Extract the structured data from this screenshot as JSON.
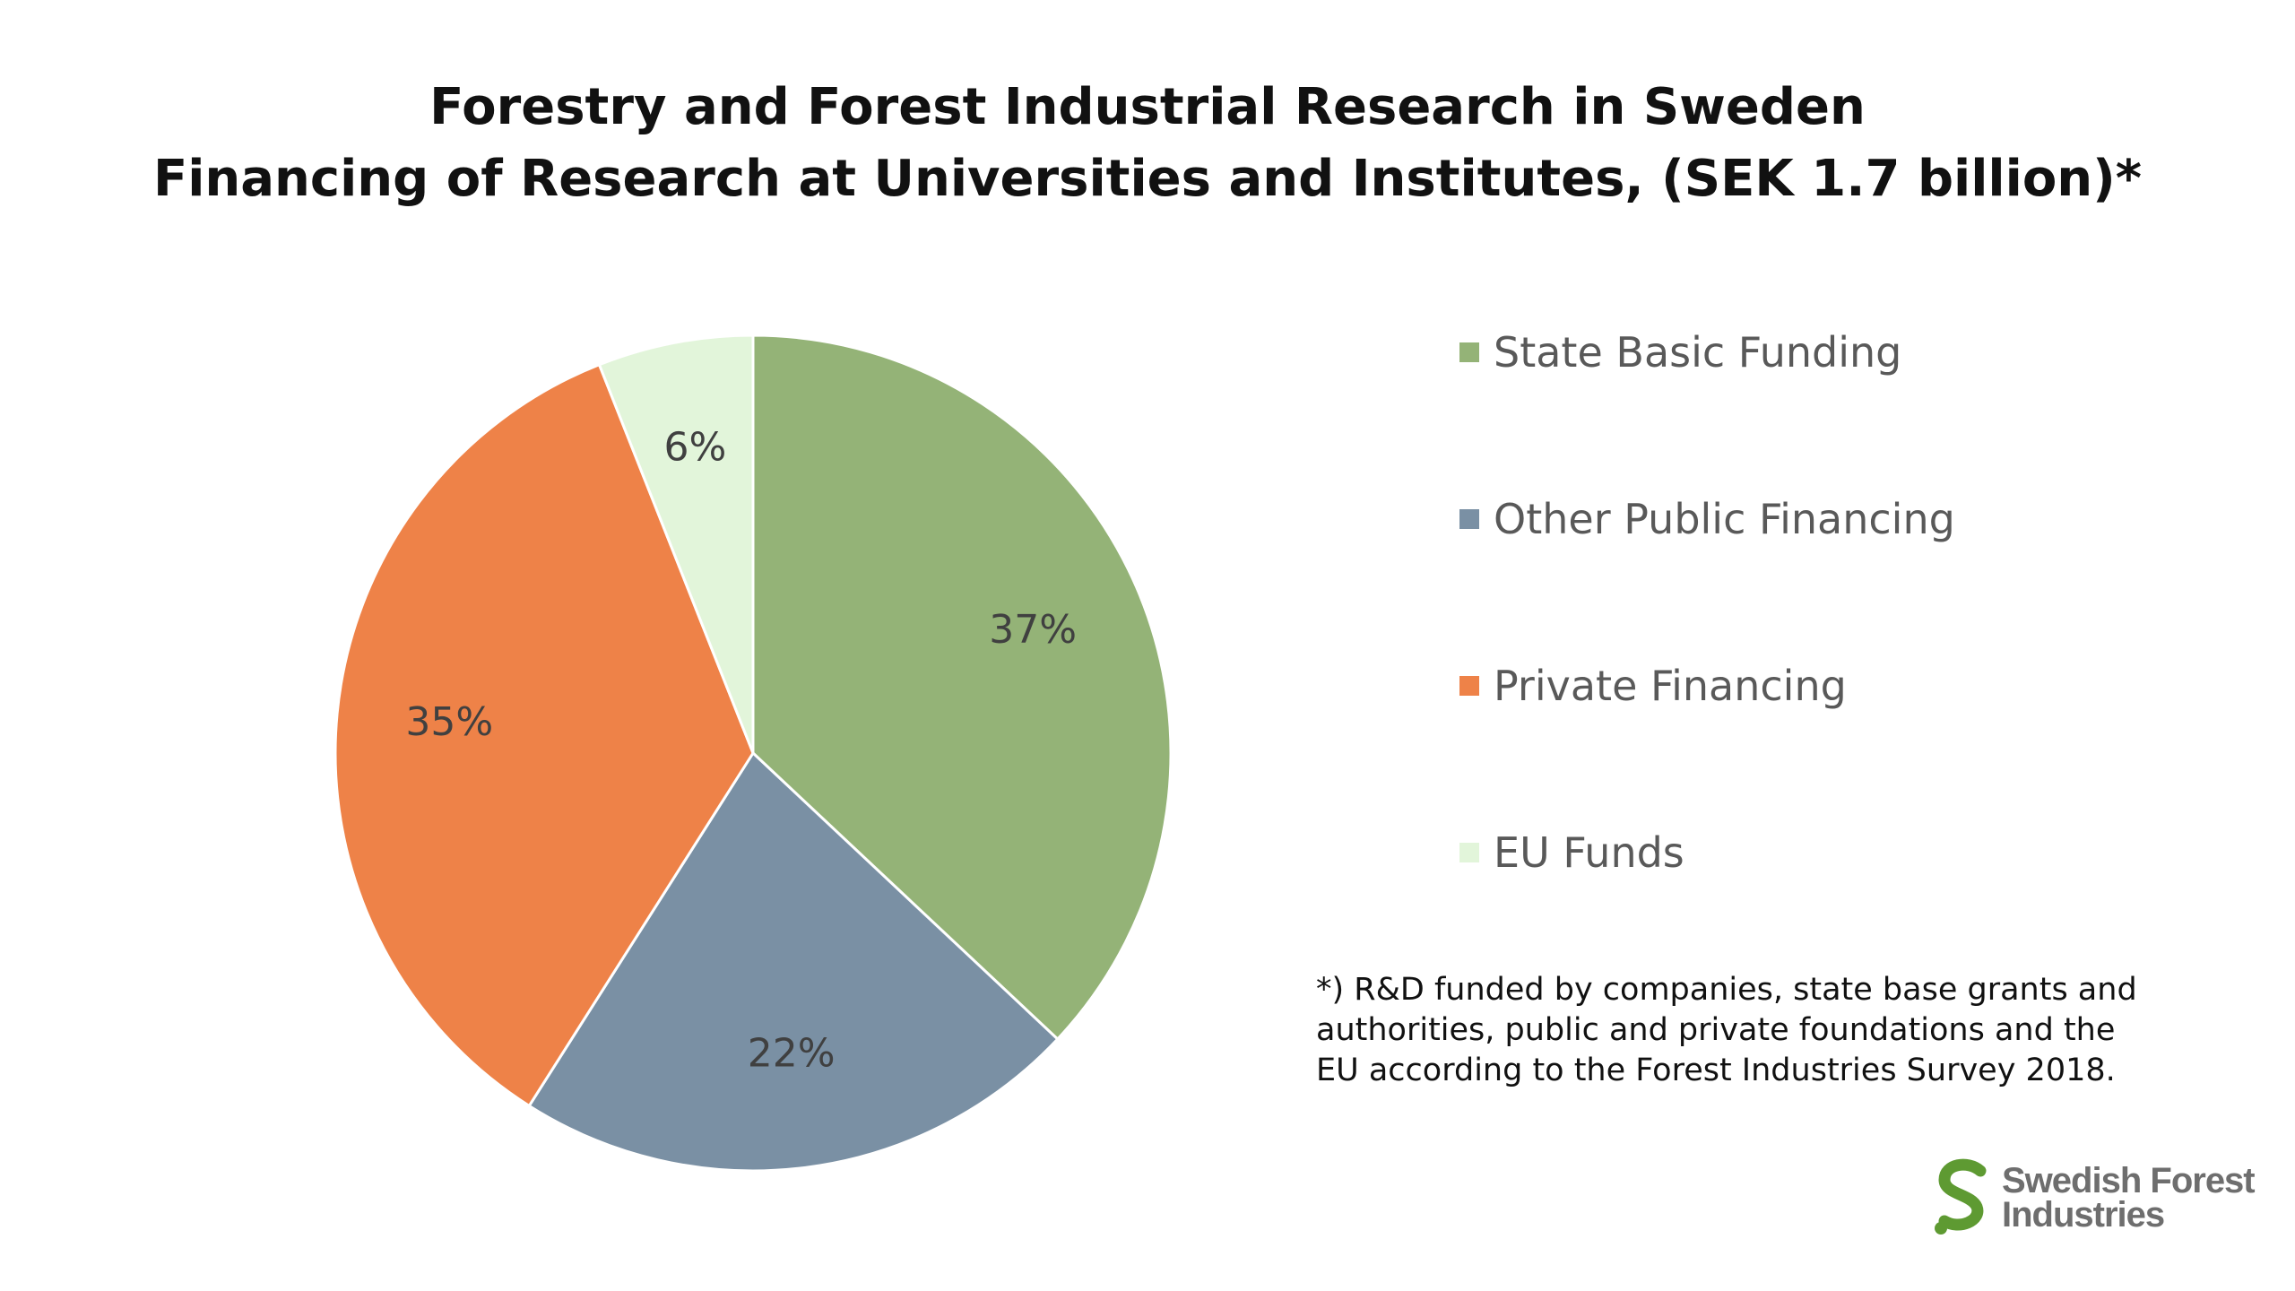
{
  "chart_data": {
    "type": "pie",
    "title": "Forestry and Forest Industrial Research in Sweden",
    "subtitle": "Financing of Research at Universities and Institutes,  (SEK 1.7 billion)*",
    "categories": [
      "State Basic Funding",
      "Other Public Financing",
      "Private Financing",
      "EU Funds"
    ],
    "values": [
      37,
      22,
      35,
      6
    ],
    "labels": [
      "37%",
      "22%",
      "35%",
      "6%"
    ],
    "colors": [
      "#94B377",
      "#7A90A4",
      "#EE8248",
      "#E2F5DA"
    ],
    "legend_position": "right",
    "footnote": "*) R&D funded by companies, state base grants and authorities, public and private foundations and the EU according to the Forest Industries Survey 2018."
  },
  "footnote_lines": [
    "*) R&D funded by companies, state base grants and",
    "authorities, public and private foundations and the",
    "EU according to the Forest Industries Survey 2018."
  ],
  "logo": {
    "line1": "Swedish Forest",
    "line2": "Industries",
    "color": "#5E9A32"
  }
}
